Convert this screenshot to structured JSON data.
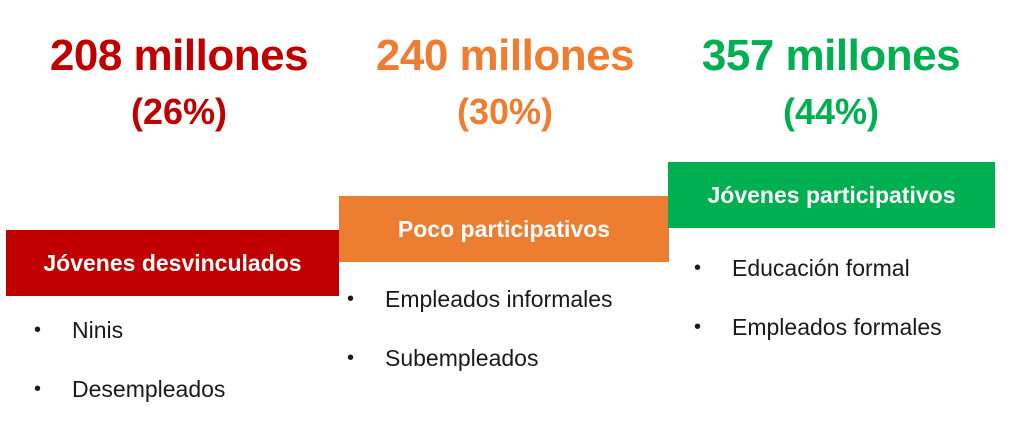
{
  "colors": {
    "red": "#c00000",
    "orange": "#ed7d31",
    "green": "#00b050"
  },
  "groups": [
    {
      "headline": "208 millones",
      "percent": "(26%)",
      "label": "Jóvenes desvinculados",
      "share": 0.26,
      "bullets": [
        "Ninis",
        "Desempleados"
      ]
    },
    {
      "headline": "240 millones",
      "percent": "(30%)",
      "label": "Poco participativos",
      "share": 0.3,
      "bullets": [
        "Empleados informales",
        "Subempleados"
      ]
    },
    {
      "headline": "357 millones",
      "percent": "(44%)",
      "label": "Jóvenes participativos",
      "share": 0.44,
      "bullets": [
        "Educación formal",
        "Empleados formales"
      ]
    }
  ],
  "bullet_glyph": "•"
}
